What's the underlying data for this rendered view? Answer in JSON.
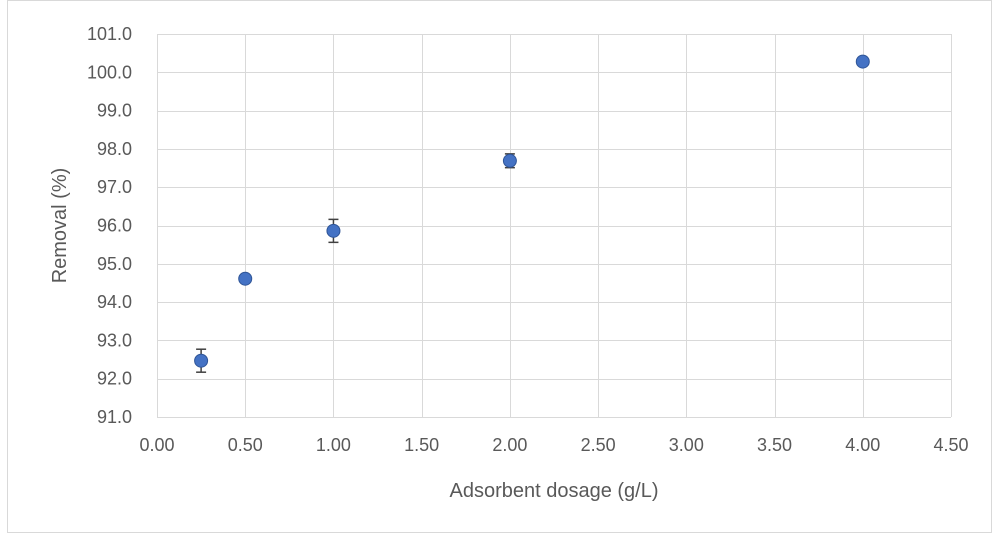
{
  "chart_data": {
    "type": "scatter",
    "title": "",
    "xlabel": "Adsorbent dosage (g/L)",
    "ylabel": "Removal (%)",
    "xlim": [
      0,
      4.5
    ],
    "ylim": [
      91,
      101
    ],
    "x_ticks": [
      "0.00",
      "0.50",
      "1.00",
      "1.50",
      "2.00",
      "2.50",
      "3.00",
      "3.50",
      "4.00",
      "4.50"
    ],
    "y_ticks": [
      "91.0",
      "92.0",
      "93.0",
      "94.0",
      "95.0",
      "96.0",
      "97.0",
      "98.0",
      "99.0",
      "100.0",
      "101.0"
    ],
    "grid": true,
    "legend": "none",
    "color": "#4472c4",
    "error_bar_color": "#404040",
    "series": [
      {
        "points": [
          {
            "x": 0.25,
            "y": 92.47,
            "error": 0.3
          },
          {
            "x": 0.5,
            "y": 94.61,
            "error": 0.08
          },
          {
            "x": 1.0,
            "y": 95.86,
            "error": 0.3
          },
          {
            "x": 2.0,
            "y": 97.69,
            "error": 0.18
          },
          {
            "x": 4.0,
            "y": 100.28,
            "error": 0.0
          }
        ]
      }
    ]
  }
}
